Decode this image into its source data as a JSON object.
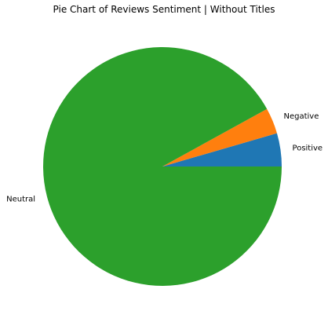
{
  "chart_data": {
    "type": "pie",
    "title": "Pie Chart of Reviews Sentiment | Without Titles",
    "categories": [
      "Positive",
      "Negative",
      "Neutral"
    ],
    "values": [
      4.5,
      3.5,
      92.0
    ],
    "colors": [
      "#1f77b4",
      "#ff7f0e",
      "#2ca02c"
    ],
    "start_angle_deg": 0,
    "direction": "counterclockwise"
  }
}
